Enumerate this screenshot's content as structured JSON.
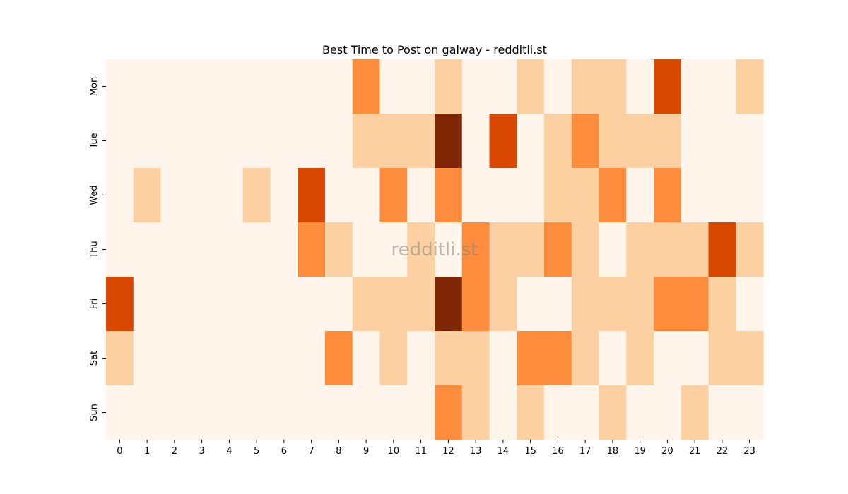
{
  "chart_data": {
    "type": "heatmap",
    "title": "Best Time to Post on galway - redditli.st",
    "watermark": "redditli.st",
    "xlabel": "",
    "ylabel": "",
    "x_categories": [
      "0",
      "1",
      "2",
      "3",
      "4",
      "5",
      "6",
      "7",
      "8",
      "9",
      "10",
      "11",
      "12",
      "13",
      "14",
      "15",
      "16",
      "17",
      "18",
      "19",
      "20",
      "21",
      "22",
      "23"
    ],
    "y_categories": [
      "Mon",
      "Tue",
      "Wed",
      "Thu",
      "Fri",
      "Sat",
      "Sun"
    ],
    "values": [
      [
        0,
        0,
        0,
        0,
        0,
        0,
        0,
        0,
        0,
        2,
        0,
        0,
        1,
        0,
        0,
        1,
        0,
        1,
        1,
        0,
        3,
        0,
        0,
        1
      ],
      [
        0,
        0,
        0,
        0,
        0,
        0,
        0,
        0,
        0,
        1,
        1,
        1,
        4,
        0,
        3,
        0,
        1,
        2,
        1,
        1,
        1,
        0,
        0,
        0
      ],
      [
        0,
        1,
        0,
        0,
        0,
        1,
        0,
        3,
        0,
        0,
        2,
        0,
        2,
        0,
        0,
        0,
        1,
        1,
        2,
        0,
        2,
        0,
        0,
        0
      ],
      [
        0,
        0,
        0,
        0,
        0,
        0,
        0,
        2,
        1,
        0,
        0,
        1,
        0,
        2,
        1,
        1,
        2,
        1,
        0,
        1,
        1,
        1,
        3,
        1
      ],
      [
        3,
        0,
        0,
        0,
        0,
        0,
        0,
        0,
        0,
        1,
        1,
        1,
        4,
        2,
        1,
        0,
        0,
        1,
        1,
        1,
        2,
        2,
        1,
        0
      ],
      [
        1,
        0,
        0,
        0,
        0,
        0,
        0,
        0,
        2,
        0,
        1,
        0,
        1,
        1,
        0,
        2,
        2,
        1,
        0,
        1,
        0,
        0,
        1,
        1
      ],
      [
        0,
        0,
        0,
        0,
        0,
        0,
        0,
        0,
        0,
        0,
        0,
        0,
        2,
        1,
        0,
        1,
        0,
        0,
        1,
        0,
        0,
        1,
        0,
        0
      ]
    ],
    "colorscale": [
      "#fff5eb",
      "#fdd0a2",
      "#fd8d3c",
      "#d94801",
      "#7f2704"
    ],
    "grid": false,
    "colorbar": false
  }
}
